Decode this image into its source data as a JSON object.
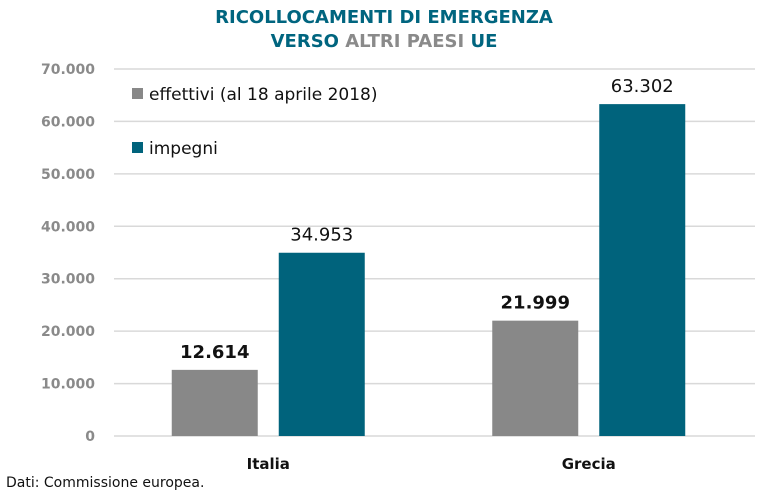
{
  "chart_data": {
    "type": "bar",
    "title_line1": "RICOLLOCAMENTI DI EMERGENZA",
    "title_line2_parts": [
      {
        "text": "VERSO ",
        "style": "accent"
      },
      {
        "text": "ALTRI PAESI ",
        "style": "grey"
      },
      {
        "text": "UE",
        "style": "accent"
      }
    ],
    "xlabel": "",
    "ylabel": "",
    "categories": [
      "Italia",
      "Grecia"
    ],
    "series": [
      {
        "name": "effettivi (al 18 aprile 2018)",
        "color": "#888888",
        "values": [
          12614,
          21999
        ],
        "labels": [
          "12.614",
          "21.999"
        ],
        "label_weight": "bold"
      },
      {
        "name": "impegni",
        "color": "#00637c",
        "values": [
          34953,
          63302
        ],
        "labels": [
          "34.953",
          "63.302"
        ],
        "label_weight": "normal"
      }
    ],
    "ylim": [
      0,
      70000
    ],
    "yticks": [
      0,
      10000,
      20000,
      30000,
      40000,
      50000,
      60000,
      70000
    ],
    "ytick_labels": [
      "0",
      "10.000",
      "20.000",
      "30.000",
      "40.000",
      "50.000",
      "60.000",
      "70.000"
    ],
    "grid": true,
    "legend_position": "top-left",
    "source": "Dati: Commissione europea."
  },
  "colors": {
    "accent": "#00657f",
    "grey_text": "#8a8a8a",
    "gridline": "#d9d9d9"
  }
}
